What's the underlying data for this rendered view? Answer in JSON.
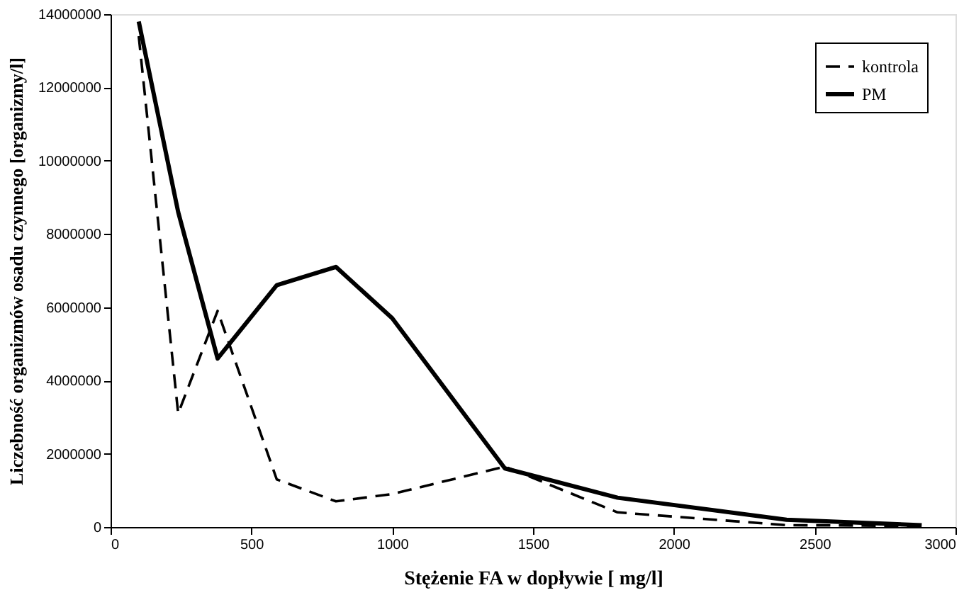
{
  "chart_data": {
    "type": "line",
    "xlabel": "Stężenie FA w dopływie    [ mg/l]",
    "ylabel": "Liczebność organizmów osadu czynnego [organizmy/l]",
    "x": [
      100,
      240,
      380,
      590,
      800,
      1000,
      1400,
      1800,
      2400,
      2880
    ],
    "series": [
      {
        "name": "kontrola",
        "color": "#000000",
        "line_style": "dashed",
        "values": [
          13400000,
          3100000,
          5900000,
          1300000,
          700000,
          900000,
          1650000,
          400000,
          50000,
          30000
        ]
      },
      {
        "name": "PM",
        "color": "#000000",
        "line_style": "solid",
        "values": [
          13800000,
          8600000,
          4600000,
          6600000,
          7100000,
          5700000,
          1600000,
          800000,
          200000,
          50000
        ]
      }
    ],
    "xlim": [
      0,
      3000
    ],
    "xticks": [
      0,
      500,
      1000,
      1500,
      2000,
      2500,
      3000
    ],
    "ylim": [
      0,
      14000000
    ],
    "yticks": [
      0,
      2000000,
      4000000,
      6000000,
      8000000,
      10000000,
      12000000,
      14000000
    ],
    "grid": false,
    "legend": "top right",
    "marker": "none"
  }
}
